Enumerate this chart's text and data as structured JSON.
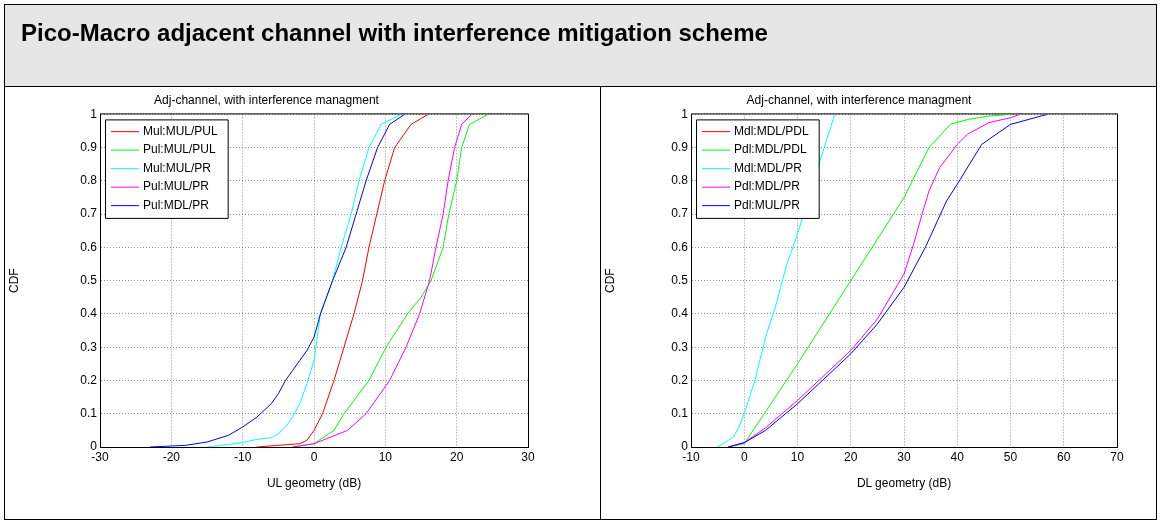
{
  "chart_data": [
    {
      "type": "line",
      "title": "Adj-channel, with interference managment",
      "xlabel": "UL geometry (dB)",
      "ylabel": "CDF",
      "annotations": [
        "Pico-Macro adjacent channel with interference mitigation scheme"
      ],
      "xlim": [
        -30,
        30
      ],
      "xticks": [
        -30,
        -20,
        -10,
        0,
        10,
        20,
        30
      ],
      "ylim": [
        0,
        1
      ],
      "yticks": [
        0,
        0.1,
        0.2,
        0.3,
        0.4,
        0.5,
        0.6,
        0.7,
        0.8,
        0.9,
        1
      ],
      "grid": true,
      "legend": "top left",
      "series": [
        {
          "name": "Mul:MUL/PUL",
          "color": "#ff0000",
          "x": [
            -8,
            -5,
            -2,
            -1,
            0,
            1.2,
            2.8,
            4.2,
            5.6,
            6.8,
            7.7,
            8.8,
            9.9,
            11.3,
            13.6,
            16
          ],
          "values": [
            0,
            0.005,
            0.01,
            0.02,
            0.05,
            0.1,
            0.2,
            0.3,
            0.4,
            0.5,
            0.6,
            0.7,
            0.8,
            0.9,
            0.97,
            1
          ]
        },
        {
          "name": "Pul:MUL/PUL",
          "color": "#00ff00",
          "x": [
            -3,
            0,
            2.8,
            4.2,
            7.7,
            10.1,
            13.1,
            15,
            16.4,
            18.1,
            18.9,
            20,
            20.7,
            21.8,
            24.4
          ],
          "values": [
            0,
            0.01,
            0.05,
            0.1,
            0.2,
            0.3,
            0.4,
            0.45,
            0.5,
            0.6,
            0.7,
            0.8,
            0.9,
            0.97,
            1
          ]
        },
        {
          "name": "Mul:MUL/PR",
          "color": "#00ffff",
          "x": [
            -15,
            -10,
            -8,
            -6,
            -5,
            -4,
            -3,
            -2,
            -1,
            0,
            0.9,
            2.6,
            3.8,
            5.2,
            6.3,
            7.7,
            9.4,
            12.2
          ],
          "values": [
            0,
            0.013,
            0.023,
            0.028,
            0.04,
            0.06,
            0.09,
            0.13,
            0.19,
            0.26,
            0.4,
            0.5,
            0.6,
            0.7,
            0.8,
            0.9,
            0.97,
            1
          ]
        },
        {
          "name": "Pul:MUL/PR",
          "color": "#ff00ff",
          "x": [
            -3,
            0,
            4.7,
            7.3,
            10.6,
            12.9,
            14.8,
            16.2,
            17.1,
            18.1,
            18.8,
            19.7,
            20.7,
            22.1
          ],
          "values": [
            0,
            0.01,
            0.05,
            0.1,
            0.2,
            0.3,
            0.4,
            0.5,
            0.6,
            0.7,
            0.8,
            0.9,
            0.97,
            1
          ]
        },
        {
          "name": "Pul:MDL/PR",
          "color": "#0000ff",
          "x": [
            -23,
            -18,
            -15,
            -12,
            -10,
            -8,
            -6,
            -5,
            -4,
            -3,
            -2,
            -1,
            0,
            0.9,
            2.6,
            4.5,
            5.9,
            7.3,
            8.9,
            10.6,
            12.7
          ],
          "values": [
            0,
            0.005,
            0.015,
            0.035,
            0.06,
            0.09,
            0.13,
            0.16,
            0.2,
            0.23,
            0.26,
            0.29,
            0.33,
            0.4,
            0.5,
            0.6,
            0.7,
            0.8,
            0.9,
            0.97,
            1
          ]
        }
      ]
    },
    {
      "type": "line",
      "title": "Adj-channel, with interference managment",
      "xlabel": "DL geometry (dB)",
      "ylabel": "CDF",
      "xlim": [
        -10,
        70
      ],
      "xticks": [
        -10,
        0,
        10,
        20,
        30,
        40,
        50,
        60,
        70
      ],
      "ylim": [
        0,
        1
      ],
      "yticks": [
        0,
        0.1,
        0.2,
        0.3,
        0.4,
        0.5,
        0.6,
        0.7,
        0.8,
        0.9,
        1
      ],
      "grid": true,
      "legend": "top left",
      "series": [
        {
          "name": "Mdl:MDL/PDL",
          "color": "#ff0000",
          "values": [
            null
          ]
        },
        {
          "name": "Pdl:MDL/PDL",
          "color": "#00ff00",
          "x": [
            -3,
            0,
            5,
            10,
            15,
            20,
            25,
            30,
            34.7,
            38.7,
            42,
            46,
            50
          ],
          "values": [
            0,
            0.01,
            0.13,
            0.25,
            0.375,
            0.5,
            0.625,
            0.75,
            0.9,
            0.97,
            0.985,
            0.995,
            1
          ]
        },
        {
          "name": "Mdl:MDL/PR",
          "color": "#00ffff",
          "x": [
            -5,
            -4,
            -2,
            -1,
            0,
            1,
            2,
            4,
            6,
            8,
            10,
            12,
            14,
            16,
            17
          ],
          "values": [
            0,
            0.01,
            0.03,
            0.06,
            0.1,
            0.15,
            0.2,
            0.33,
            0.43,
            0.55,
            0.64,
            null,
            0.85,
            0.95,
            1
          ]
        },
        {
          "name": "Pdl:MDL/PR",
          "color": "#ff00ff",
          "x": [
            -3,
            0,
            4,
            10,
            14,
            20,
            25,
            30,
            31.8,
            33.4,
            34.7,
            36.7,
            40,
            41.9,
            45.9,
            50,
            51.8
          ],
          "values": [
            0,
            0.013,
            0.058,
            0.14,
            0.2,
            0.29,
            0.385,
            0.52,
            0.61,
            0.7,
            0.77,
            0.84,
            0.91,
            0.94,
            0.975,
            0.99,
            1
          ]
        },
        {
          "name": "Pdl:MUL/PR",
          "color": "#0000ff",
          "x": [
            -3,
            0,
            4,
            10,
            14,
            20,
            25,
            30,
            34,
            38,
            40,
            44.6,
            50,
            55.7,
            57
          ],
          "values": [
            0,
            0.013,
            0.05,
            0.13,
            0.19,
            0.28,
            0.37,
            0.48,
            0.6,
            0.74,
            0.79,
            0.91,
            0.97,
            0.995,
            1
          ]
        }
      ]
    }
  ]
}
